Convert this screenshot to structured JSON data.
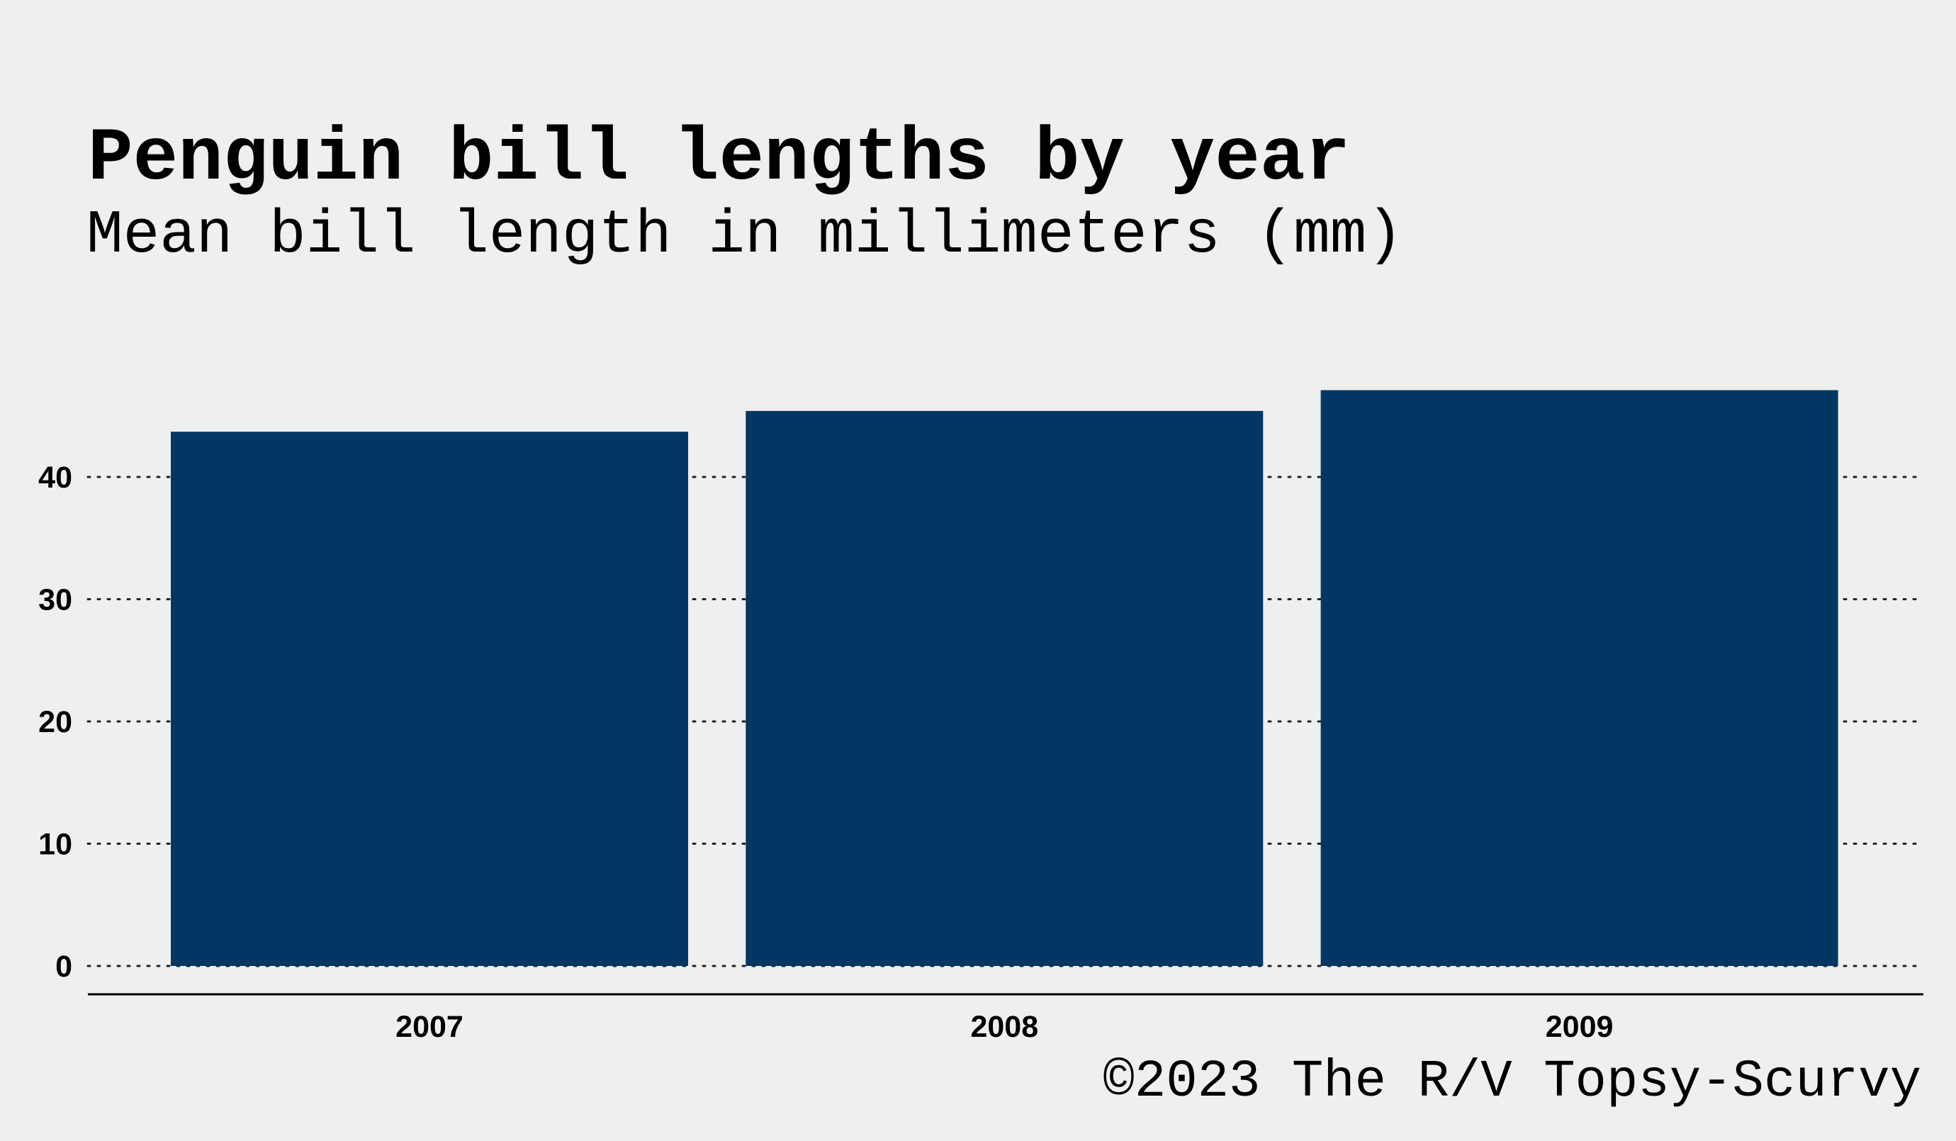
{
  "chart_data": {
    "type": "bar",
    "title": "Penguin bill lengths by year",
    "subtitle": "Mean bill length in millimeters (mm)",
    "caption": "©2023 The R/V Topsy-Scurvy",
    "categories": [
      "2007",
      "2008",
      "2009"
    ],
    "values": [
      43.7,
      45.4,
      47.1
    ],
    "yticks": [
      0,
      10,
      20,
      30,
      40
    ],
    "ylim": [
      0,
      47.1
    ],
    "xlabel": "",
    "ylabel": "",
    "grid": "horizontal-dotted",
    "legend": "none",
    "bar_color": "#023764"
  }
}
